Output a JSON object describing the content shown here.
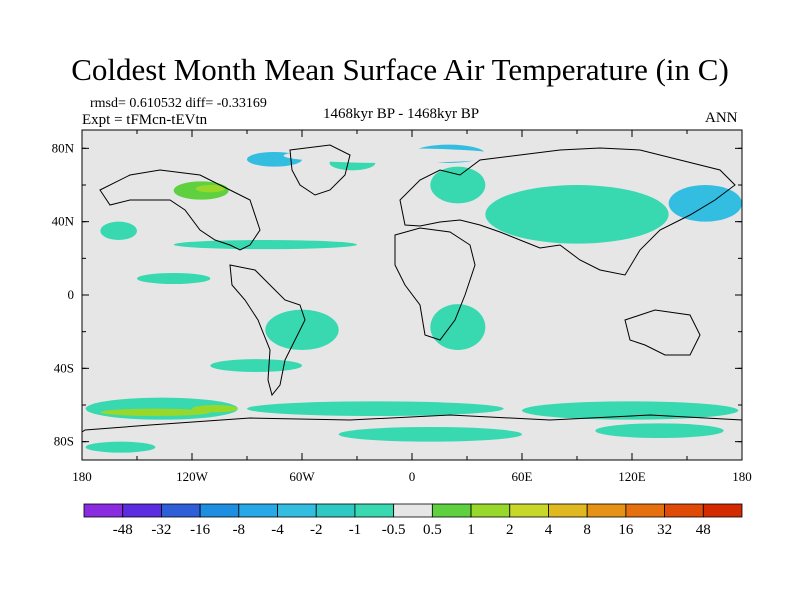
{
  "title": "Coldest Month Mean Surface Air Temperature (in C)",
  "stats": {
    "rmsd_line": "rmsd= 0.610532 diff= -0.33169",
    "expt_line": "Expt = tFMcn-tEVtn",
    "period": "1468kyr BP - 1468kyr BP",
    "season": "ANN"
  },
  "map": {
    "background_color": "#e6e6e6",
    "lat_ticks": [
      {
        "value": 80,
        "label": "80N"
      },
      {
        "value": 40,
        "label": "40N"
      },
      {
        "value": 0,
        "label": "0"
      },
      {
        "value": -40,
        "label": "40S"
      },
      {
        "value": -80,
        "label": "80S"
      }
    ],
    "lon_ticks": [
      {
        "value": -180,
        "label": "180"
      },
      {
        "value": -120,
        "label": "120W"
      },
      {
        "value": -60,
        "label": "60W"
      },
      {
        "value": 0,
        "label": "0"
      },
      {
        "value": 60,
        "label": "60E"
      },
      {
        "value": 120,
        "label": "120E"
      },
      {
        "value": 180,
        "label": "180"
      }
    ]
  },
  "chart_data": {
    "type": "heatmap",
    "title": "Coldest Month Mean Surface Air Temperature (in C)",
    "x_range": [
      -180,
      180
    ],
    "y_range": [
      -90,
      90
    ],
    "colorbar": {
      "levels": [
        "-48",
        "-32",
        "-16",
        "-8",
        "-4",
        "-2",
        "-1",
        "-0.5",
        "0.5",
        "1",
        "2",
        "4",
        "8",
        "16",
        "32",
        "48"
      ],
      "colors": [
        "#8a2be2",
        "#5a2ee0",
        "#2f5fd8",
        "#1e8fe0",
        "#26a9e6",
        "#33bde0",
        "#2ec9c5",
        "#38d9b0",
        "#e6e6e6",
        "#5fd040",
        "#98d82b",
        "#c9d72a",
        "#e0b81f",
        "#e69216",
        "#e6700e",
        "#e04a08",
        "#d42a02"
      ]
    },
    "regions": [
      {
        "lon": [
          -178,
          -95
        ],
        "lat": [
          -68,
          -56
        ],
        "fill": "#38d9b0"
      },
      {
        "lon": [
          -170,
          -110
        ],
        "lat": [
          -66,
          -62
        ],
        "fill": "#98d82b"
      },
      {
        "lon": [
          -120,
          -95
        ],
        "lat": [
          -64,
          -60
        ],
        "fill": "#98d82b"
      },
      {
        "lon": [
          -90,
          50
        ],
        "lat": [
          -66,
          -58
        ],
        "fill": "#38d9b0"
      },
      {
        "lon": [
          60,
          178
        ],
        "lat": [
          -68,
          -58
        ],
        "fill": "#38d9b0"
      },
      {
        "lon": [
          -40,
          60
        ],
        "lat": [
          -80,
          -72
        ],
        "fill": "#38d9b0"
      },
      {
        "lon": [
          100,
          170
        ],
        "lat": [
          -78,
          -70
        ],
        "fill": "#38d9b0"
      },
      {
        "lon": [
          -178,
          -140
        ],
        "lat": [
          -86,
          -80
        ],
        "fill": "#38d9b0"
      },
      {
        "lon": [
          -80,
          -40
        ],
        "lat": [
          -8,
          -30
        ],
        "fill": "#38d9b0"
      },
      {
        "lon": [
          10,
          40
        ],
        "lat": [
          -5,
          -30
        ],
        "fill": "#38d9b0"
      },
      {
        "lon": [
          -130,
          -30
        ],
        "lat": [
          30,
          25
        ],
        "fill": "#38d9b0"
      },
      {
        "lon": [
          -130,
          -100
        ],
        "lat": [
          62,
          52
        ],
        "fill": "#5fd040"
      },
      {
        "lon": [
          -118,
          -102
        ],
        "lat": [
          60,
          56
        ],
        "fill": "#98d82b"
      },
      {
        "lon": [
          -90,
          -60
        ],
        "lat": [
          78,
          70
        ],
        "fill": "#33bde0"
      },
      {
        "lon": [
          -45,
          -20
        ],
        "lat": [
          76,
          68
        ],
        "fill": "#38d9b0"
      },
      {
        "lon": [
          0,
          40
        ],
        "lat": [
          82,
          72
        ],
        "fill": "#33bde0"
      },
      {
        "lon": [
          10,
          40
        ],
        "lat": [
          70,
          50
        ],
        "fill": "#38d9b0"
      },
      {
        "lon": [
          40,
          140
        ],
        "lat": [
          60,
          28
        ],
        "fill": "#38d9b0"
      },
      {
        "lon": [
          140,
          180
        ],
        "lat": [
          60,
          40
        ],
        "fill": "#33bde0"
      },
      {
        "lon": [
          -170,
          -150
        ],
        "lat": [
          40,
          30
        ],
        "fill": "#38d9b0"
      },
      {
        "lon": [
          -150,
          -110
        ],
        "lat": [
          12,
          6
        ],
        "fill": "#38d9b0"
      },
      {
        "lon": [
          -110,
          -60
        ],
        "lat": [
          -35,
          -42
        ],
        "fill": "#38d9b0"
      },
      {
        "lon": [
          -70,
          50
        ],
        "lat": [
          80,
          72
        ],
        "fill": "#e6e6e6"
      }
    ]
  }
}
